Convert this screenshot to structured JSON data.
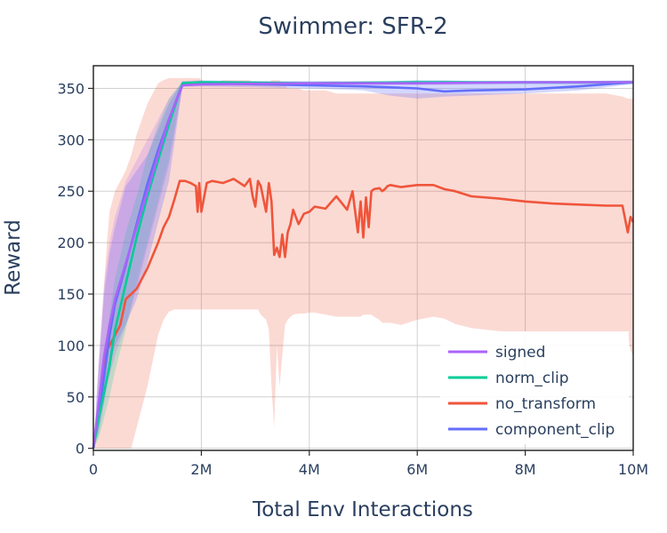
{
  "chart_data": {
    "type": "line",
    "title": "Swimmer: SFR-2",
    "xlabel": "Total Env Interactions",
    "ylabel": "Reward",
    "xlim": [
      0,
      10000000
    ],
    "ylim": [
      -2,
      372
    ],
    "x_ticks": [
      {
        "value": 0,
        "label": "0"
      },
      {
        "value": 2000000,
        "label": "2M"
      },
      {
        "value": 4000000,
        "label": "4M"
      },
      {
        "value": 6000000,
        "label": "6M"
      },
      {
        "value": 8000000,
        "label": "8M"
      },
      {
        "value": 10000000,
        "label": "10M"
      }
    ],
    "y_ticks": [
      {
        "value": 0,
        "label": "0"
      },
      {
        "value": 50,
        "label": "50"
      },
      {
        "value": 100,
        "label": "100"
      },
      {
        "value": 150,
        "label": "150"
      },
      {
        "value": 200,
        "label": "200"
      },
      {
        "value": 250,
        "label": "250"
      },
      {
        "value": 300,
        "label": "300"
      },
      {
        "value": 350,
        "label": "350"
      }
    ],
    "grid": true,
    "legend_position": "bottom-right",
    "series": [
      {
        "name": "no_transform",
        "color": "#ef553b",
        "band_color": "#ef553b",
        "x": [
          0,
          50000,
          100000,
          150000,
          200000,
          250000,
          300000,
          400000,
          500000,
          600000,
          700000,
          800000,
          1000000,
          1200000,
          1300000,
          1400000,
          1500000,
          1600000,
          1700000,
          1800000,
          1900000,
          1930000,
          1960000,
          2000000,
          2100000,
          2200000,
          2400000,
          2600000,
          2800000,
          2900000,
          2950000,
          3000000,
          3050000,
          3100000,
          3200000,
          3250000,
          3300000,
          3350000,
          3400000,
          3450000,
          3500000,
          3550000,
          3600000,
          3650000,
          3700000,
          3800000,
          3900000,
          4000000,
          4100000,
          4300000,
          4500000,
          4700000,
          4800000,
          4900000,
          4950000,
          5000000,
          5050000,
          5100000,
          5150000,
          5200000,
          5300000,
          5350000,
          5400000,
          5450000,
          5500000,
          5700000,
          6000000,
          6300000,
          6500000,
          6700000,
          7000000,
          7500000,
          8000000,
          8500000,
          9000000,
          9500000,
          9800000,
          9900000,
          9950000,
          10000000
        ],
        "y": [
          0,
          20,
          40,
          60,
          85,
          95,
          100,
          110,
          120,
          145,
          150,
          155,
          175,
          200,
          215,
          225,
          242,
          260,
          260,
          258,
          255,
          230,
          258,
          230,
          258,
          260,
          258,
          262,
          255,
          262,
          245,
          235,
          260,
          255,
          230,
          258,
          240,
          188,
          195,
          186,
          208,
          186,
          210,
          218,
          232,
          218,
          228,
          230,
          235,
          233,
          245,
          232,
          250,
          210,
          240,
          205,
          244,
          215,
          250,
          252,
          253,
          250,
          252,
          255,
          256,
          254,
          256,
          256,
          252,
          250,
          245,
          243,
          240,
          238,
          237,
          236,
          236,
          210,
          225,
          220
        ],
        "lower": [
          0,
          0,
          0,
          0,
          0,
          0,
          0,
          0,
          0,
          0,
          0,
          20,
          60,
          110,
          125,
          133,
          135,
          135,
          135,
          135,
          135,
          135,
          135,
          135,
          135,
          135,
          135,
          135,
          135,
          135,
          135,
          135,
          135,
          130,
          125,
          115,
          60,
          20,
          100,
          60,
          90,
          120,
          125,
          128,
          130,
          131,
          131,
          132,
          132,
          130,
          128,
          128,
          128,
          128,
          128,
          130,
          130,
          130,
          130,
          128,
          125,
          122,
          122,
          122,
          122,
          120,
          125,
          128,
          126,
          121,
          117,
          114,
          113,
          112,
          112,
          112,
          112,
          112,
          95,
          90
        ],
        "upper": [
          0,
          30,
          80,
          120,
          160,
          200,
          230,
          250,
          260,
          270,
          285,
          305,
          335,
          355,
          358,
          360,
          360,
          360,
          360,
          360,
          360,
          360,
          360,
          358,
          355,
          355,
          358,
          358,
          358,
          358,
          355,
          355,
          355,
          355,
          355,
          355,
          358,
          358,
          358,
          358,
          355,
          353,
          350,
          350,
          350,
          350,
          348,
          348,
          348,
          348,
          345,
          345,
          345,
          345,
          345,
          345,
          345,
          345,
          345,
          345,
          345,
          345,
          345,
          345,
          345,
          345,
          345,
          345,
          345,
          345,
          345,
          345,
          345,
          345,
          345,
          345,
          342,
          340,
          340,
          340
        ]
      },
      {
        "name": "component_clip",
        "color": "#636efa",
        "band_color": "#636efa",
        "x": [
          0,
          100000,
          200000,
          300000,
          400000,
          600000,
          800000,
          1000000,
          1200000,
          1400000,
          1650000,
          2000000,
          3000000,
          4000000,
          5000000,
          5500000,
          6000000,
          6500000,
          7000000,
          8000000,
          9000000,
          10000000
        ],
        "y": [
          0,
          35,
          70,
          110,
          140,
          178,
          218,
          257,
          290,
          320,
          354,
          355,
          354,
          353,
          352,
          351,
          350,
          347,
          348,
          349,
          352,
          356
        ],
        "lower": [
          0,
          15,
          45,
          80,
          100,
          120,
          145,
          180,
          220,
          260,
          352,
          352,
          351,
          350,
          348,
          343,
          340,
          342,
          343,
          345,
          348,
          354
        ],
        "upper": [
          0,
          80,
          150,
          190,
          215,
          255,
          270,
          285,
          310,
          335,
          357,
          358,
          357,
          356,
          356,
          357,
          358,
          358,
          357,
          356,
          357,
          358
        ]
      },
      {
        "name": "norm_clip",
        "color": "#00cc96",
        "band_color": "#00cc96",
        "x": [
          0,
          100000,
          200000,
          300000,
          400000,
          600000,
          800000,
          1000000,
          1200000,
          1400000,
          1650000,
          2000000,
          4000000,
          6000000,
          8000000,
          10000000
        ],
        "y": [
          0,
          30,
          55,
          80,
          115,
          160,
          205,
          245,
          280,
          315,
          355,
          356,
          355,
          356,
          356,
          356
        ],
        "lower": [
          0,
          10,
          30,
          50,
          75,
          115,
          160,
          200,
          240,
          280,
          353,
          354,
          354,
          354,
          354,
          354
        ],
        "upper": [
          0,
          55,
          95,
          130,
          165,
          210,
          245,
          285,
          315,
          340,
          357,
          357,
          357,
          357,
          357,
          357
        ]
      },
      {
        "name": "signed",
        "color": "#ab63fa",
        "band_color": "#ab63fa",
        "x": [
          0,
          100000,
          200000,
          300000,
          400000,
          600000,
          800000,
          1000000,
          1200000,
          1400000,
          1650000,
          2000000,
          4000000,
          6000000,
          8000000,
          10000000
        ],
        "y": [
          0,
          45,
          90,
          120,
          145,
          180,
          215,
          250,
          285,
          320,
          353,
          354,
          355,
          355,
          356,
          356
        ],
        "lower": [
          0,
          20,
          45,
          70,
          90,
          120,
          155,
          195,
          235,
          275,
          351,
          352,
          353,
          353,
          354,
          354
        ],
        "upper": [
          0,
          90,
          160,
          200,
          225,
          260,
          280,
          300,
          320,
          340,
          356,
          357,
          357,
          357,
          357,
          357
        ]
      }
    ],
    "legend": [
      "signed",
      "norm_clip",
      "no_transform",
      "component_clip"
    ]
  }
}
